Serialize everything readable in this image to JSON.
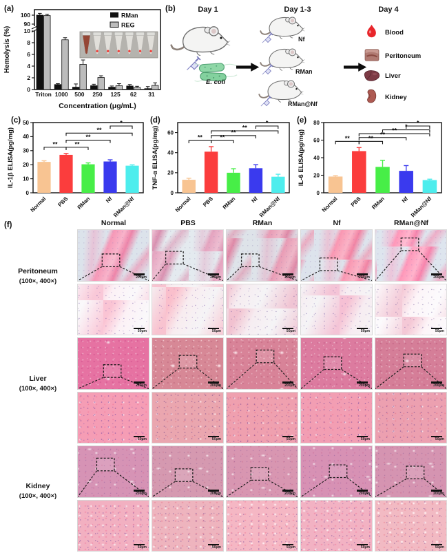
{
  "panels": {
    "a": "(a)",
    "b": "(b)",
    "c": "(c)",
    "d": "(d)",
    "e": "(e)",
    "f": "(f)"
  },
  "chart_data": [
    {
      "panel": "a",
      "type": "bar",
      "categories": [
        "Triton",
        "1000",
        "500",
        "250",
        "125",
        "62",
        "31"
      ],
      "series": [
        {
          "name": "RMan",
          "color": "#111111",
          "values": [
            100,
            0.85,
            0.4,
            0.65,
            0.4,
            0.6,
            0.15
          ],
          "errors": [
            2,
            0.15,
            0.55,
            0.25,
            0.2,
            0.25,
            0.35
          ]
        },
        {
          "name": "REG",
          "color": "#bcbcbc",
          "values": [
            99.5,
            8.5,
            4.3,
            2.05,
            0.65,
            0.35,
            0.7
          ],
          "errors": [
            1.5,
            0.35,
            0.75,
            0.3,
            0.35,
            0.2,
            0.45
          ]
        }
      ],
      "ylabel": "Hemolysis (%)",
      "xlabel": "Concentration (μg/mL)",
      "y_axis": {
        "broken": true,
        "lower_range": [
          0,
          10
        ],
        "upper_range": [
          90,
          100
        ],
        "lower_ticks": [
          0,
          2,
          4,
          6,
          8,
          10
        ],
        "upper_ticks": [
          90,
          100
        ]
      },
      "legend_position": "top-right",
      "inset": {
        "tubes": 7,
        "hemolyzed_tube_index": 0,
        "note": "photo of microtubes; first tube red (hemolysis), others clear with red RBC pellet"
      }
    },
    {
      "panel": "c",
      "type": "bar",
      "categories": [
        "Normal",
        "PBS",
        "RMan",
        "Nf",
        "RMan@Nf"
      ],
      "values": [
        22,
        27,
        20.3,
        22.3,
        19.3
      ],
      "errors": [
        0.8,
        1,
        1,
        1.2,
        0.6
      ],
      "colors": [
        "#f8c492",
        "#fb3d3d",
        "#47ee47",
        "#3a3aee",
        "#4deded"
      ],
      "ylabel": "IL-1β ELISA(pg/mg)",
      "ylim": [
        0,
        50
      ],
      "yticks": [
        0,
        10,
        20,
        30,
        40,
        50
      ],
      "significance": [
        {
          "a": "Normal",
          "b": "PBS",
          "label": "**",
          "level": 1
        },
        {
          "a": "PBS",
          "b": "RMan",
          "label": "**",
          "level": 1
        },
        {
          "a": "PBS",
          "b": "Nf",
          "label": "**",
          "level": 2
        },
        {
          "a": "PBS",
          "b": "RMan@Nf",
          "label": "**",
          "level": 3
        },
        {
          "a": "Nf",
          "b": "RMan@Nf",
          "label": "*",
          "level": 4
        }
      ]
    },
    {
      "panel": "d",
      "type": "bar",
      "categories": [
        "Normal",
        "PBS",
        "RMan",
        "Nf",
        "RMan@Nf"
      ],
      "values": [
        13,
        41,
        20,
        24.5,
        16
      ],
      "errors": [
        1.5,
        5,
        4,
        3.5,
        2.5
      ],
      "colors": [
        "#f8c492",
        "#fb3d3d",
        "#47ee47",
        "#3a3aee",
        "#4deded"
      ],
      "ylabel": "TNF-α ELISA(pg/mg)",
      "ylim": [
        0,
        70
      ],
      "yticks": [
        0,
        20,
        40,
        60
      ],
      "significance": [
        {
          "a": "Normal",
          "b": "PBS",
          "label": "**",
          "level": 1
        },
        {
          "a": "PBS",
          "b": "RMan",
          "label": "**",
          "level": 1
        },
        {
          "a": "PBS",
          "b": "Nf",
          "label": "**",
          "level": 2
        },
        {
          "a": "PBS",
          "b": "RMan@Nf",
          "label": "**",
          "level": 3
        },
        {
          "a": "Nf",
          "b": "RMan@Nf",
          "label": "*",
          "level": 4
        }
      ]
    },
    {
      "panel": "e",
      "type": "bar",
      "categories": [
        "Normal",
        "PBS",
        "RMan",
        "Nf",
        "RMan@Nf"
      ],
      "values": [
        18.5,
        47.5,
        29.5,
        25,
        14.5
      ],
      "errors": [
        1,
        4,
        7.5,
        6,
        1
      ],
      "colors": [
        "#f8c492",
        "#fb3d3d",
        "#47ee47",
        "#3a3aee",
        "#4deded"
      ],
      "ylabel": "IL-6 ELISA(pg/mg)",
      "ylim": [
        0,
        80
      ],
      "yticks": [
        0,
        20,
        40,
        60,
        80
      ],
      "significance": [
        {
          "a": "Normal",
          "b": "PBS",
          "label": "**",
          "level": 1
        },
        {
          "a": "PBS",
          "b": "RMan",
          "label": "**",
          "level": 1
        },
        {
          "a": "PBS",
          "b": "Nf",
          "label": "**",
          "level": 2
        },
        {
          "a": "PBS",
          "b": "RMan@Nf",
          "label": "**",
          "level": 3
        },
        {
          "a": "RMan",
          "b": "RMan@Nf",
          "label": "*",
          "level": 4
        },
        {
          "a": "Nf",
          "b": "RMan@Nf",
          "label": "*",
          "level": 5
        }
      ]
    }
  ],
  "panel_b": {
    "stages": [
      {
        "label": "Day 1"
      },
      {
        "label": "Day 1-3"
      },
      {
        "label": "Day 4"
      }
    ],
    "ecoli_label": "E. coli",
    "mice_labels": [
      "Nf",
      "RMan",
      "RMan@Nf"
    ],
    "outputs": [
      {
        "icon": "blood-drop-icon",
        "label": "Blood"
      },
      {
        "icon": "peritoneum-icon",
        "label": "Peritoneum"
      },
      {
        "icon": "liver-icon",
        "label": "Liver"
      },
      {
        "icon": "kidney-icon",
        "label": "Kidney"
      }
    ]
  },
  "panel_f": {
    "columns": [
      "Normal",
      "PBS",
      "RMan",
      "Nf",
      "RMan@Nf"
    ],
    "row_groups": [
      {
        "name": "Peritoneum",
        "mag": "(100×, 400×)"
      },
      {
        "name": "Liver",
        "mag": "(100×, 400×)"
      },
      {
        "name": "Kidney",
        "mag": "(100×, 400×)"
      }
    ],
    "rows": [
      {
        "tissue": "Peritoneum",
        "magnification": "100×",
        "scalebar": "200μm",
        "callout": true
      },
      {
        "tissue": "Peritoneum",
        "magnification": "400×",
        "scalebar": "50μm",
        "callout": false
      },
      {
        "tissue": "Liver",
        "magnification": "100×",
        "scalebar": "200μm",
        "callout": true
      },
      {
        "tissue": "Liver",
        "magnification": "400×",
        "scalebar": "50μm",
        "callout": false
      },
      {
        "tissue": "Kidney",
        "magnification": "100×",
        "scalebar": "200μm",
        "callout": true
      },
      {
        "tissue": "Kidney",
        "magnification": "400×",
        "scalebar": "50μm",
        "callout": false
      }
    ]
  }
}
